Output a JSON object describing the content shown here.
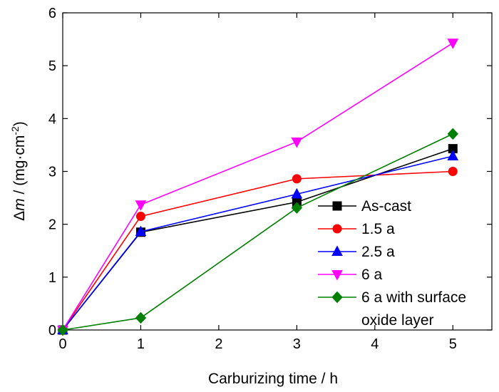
{
  "chart_data": {
    "type": "line",
    "xlabel": "Carburizing time / h",
    "ylabel_prefix": "Δ",
    "ylabel_var": "m",
    "ylabel_unit_main": " / (mg·cm",
    "ylabel_unit_exp": "-2",
    "ylabel_unit_close": ")",
    "xlim": [
      0,
      5.5
    ],
    "ylim": [
      0,
      6
    ],
    "xticks": [
      0,
      1,
      2,
      3,
      4,
      5
    ],
    "yticks": [
      0,
      1,
      2,
      3,
      4,
      5,
      6
    ],
    "legend_position": "bottom-right",
    "grid": false,
    "series": [
      {
        "name": "As-cast",
        "color": "#000000",
        "marker": "square",
        "points": [
          [
            0,
            0
          ],
          [
            1,
            1.85
          ],
          [
            3,
            2.42
          ],
          [
            5,
            3.43
          ]
        ]
      },
      {
        "name": "1.5 a",
        "color": "#ff0000",
        "marker": "circle",
        "points": [
          [
            0,
            0
          ],
          [
            1,
            2.15
          ],
          [
            3,
            2.86
          ],
          [
            5,
            3.0
          ]
        ]
      },
      {
        "name": "2.5 a",
        "color": "#0000ff",
        "marker": "triangle-up",
        "points": [
          [
            0,
            0
          ],
          [
            1,
            1.86
          ],
          [
            3,
            2.57
          ],
          [
            5,
            3.29
          ]
        ]
      },
      {
        "name": "6 a",
        "color": "#ff00ff",
        "marker": "triangle-down",
        "points": [
          [
            0,
            0
          ],
          [
            1,
            2.37
          ],
          [
            3,
            3.56
          ],
          [
            5,
            5.43
          ]
        ]
      },
      {
        "name": "6 a with surface",
        "name_line2": "oxide layer",
        "color": "#008000",
        "marker": "diamond",
        "points": [
          [
            0,
            0
          ],
          [
            1,
            0.23
          ],
          [
            3,
            2.31
          ],
          [
            5,
            3.71
          ]
        ]
      }
    ]
  }
}
